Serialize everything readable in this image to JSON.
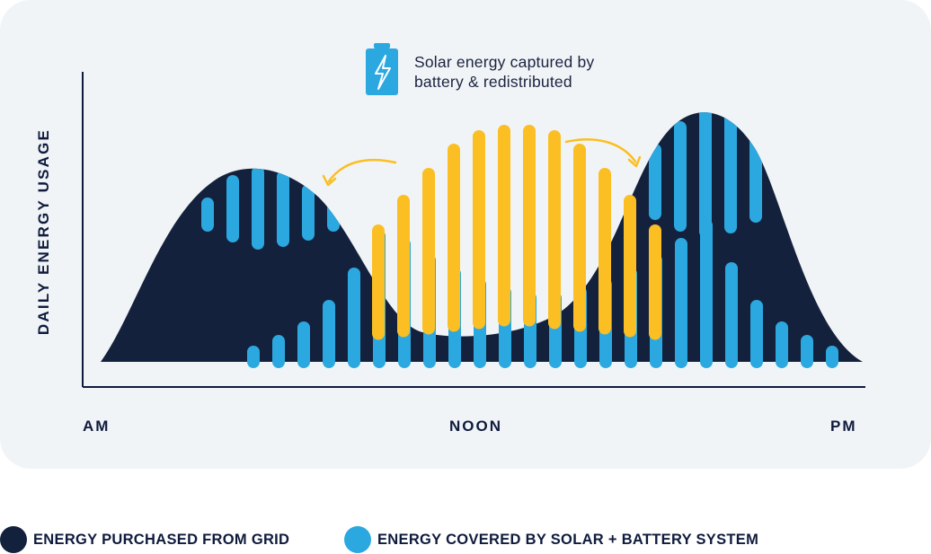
{
  "chart_data": {
    "type": "area",
    "title": "",
    "ylabel": "DAILY ENERGY USAGE",
    "xlabel": "",
    "x_tick_labels": [
      "AM",
      "NOON",
      "PM"
    ],
    "annotation": "Solar energy captured by battery & redistributed",
    "series": [
      {
        "name": "ENERGY PURCHASED FROM GRID",
        "description": "dark navy daily demand curve with morning and evening peaks"
      },
      {
        "name": "ENERGY COVERED BY SOLAR + BATTERY SYSTEM",
        "description": "blue bars under the curve and at the peaks"
      }
    ],
    "solar_capture_bars": [
      0.51,
      0.62,
      0.72,
      0.81,
      0.86,
      0.88,
      0.88,
      0.86,
      0.81,
      0.72,
      0.62,
      0.51
    ],
    "solar_covered_bars": [
      0.06,
      0.1,
      0.15,
      0.23,
      0.35,
      0.49,
      0.46,
      0.4,
      0.35,
      0.31,
      0.28,
      0.26,
      0.26,
      0.28,
      0.31,
      0.35,
      0.4,
      0.46,
      0.53,
      0.37,
      0.23,
      0.15,
      0.1,
      0.06
    ]
  },
  "annotation": {
    "line1": "Solar energy captured by",
    "line2": "battery & redistributed",
    "icon": "battery-bolt-icon"
  },
  "legend": [
    {
      "label": "ENERGY PURCHASED FROM GRID",
      "color": "#14213d"
    },
    {
      "label": "ENERGY COVERED BY SOLAR + BATTERY SYSTEM",
      "color": "#2ba8e0"
    }
  ],
  "colors": {
    "grid": "#14213d",
    "solar": "#2ba8e0",
    "battery": "#fbbf24",
    "card": "#f1f4f7",
    "axis": "#0f1b3d"
  }
}
